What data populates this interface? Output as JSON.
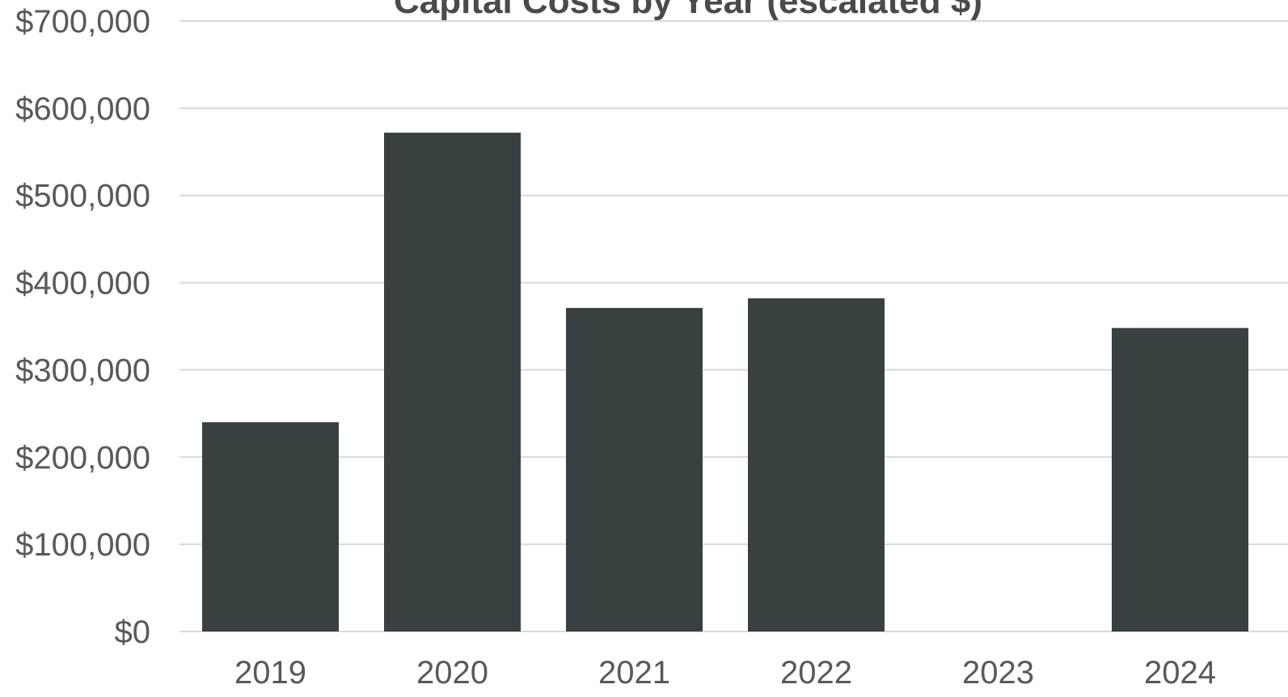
{
  "chart_data": {
    "type": "bar",
    "title": "Capital Costs by Year (escalated $)",
    "xlabel": "",
    "ylabel": "",
    "categories": [
      "2019",
      "2020",
      "2021",
      "2022",
      "2023",
      "2024"
    ],
    "values": [
      240000,
      572000,
      371000,
      382000,
      0,
      348000
    ],
    "ylim": [
      0,
      700000
    ],
    "yticks": [
      0,
      100000,
      200000,
      300000,
      400000,
      500000,
      600000,
      700000
    ],
    "ytick_labels": [
      "$0",
      "$100,000",
      "$200,000",
      "$300,000",
      "$400,000",
      "$500,000",
      "$600,000",
      "$700,000"
    ],
    "grid": true,
    "legend": "none",
    "colors": {
      "bar": "#394042",
      "grid": "#d9d9d9",
      "text": "#595959",
      "title": "#4a4a4a"
    }
  }
}
